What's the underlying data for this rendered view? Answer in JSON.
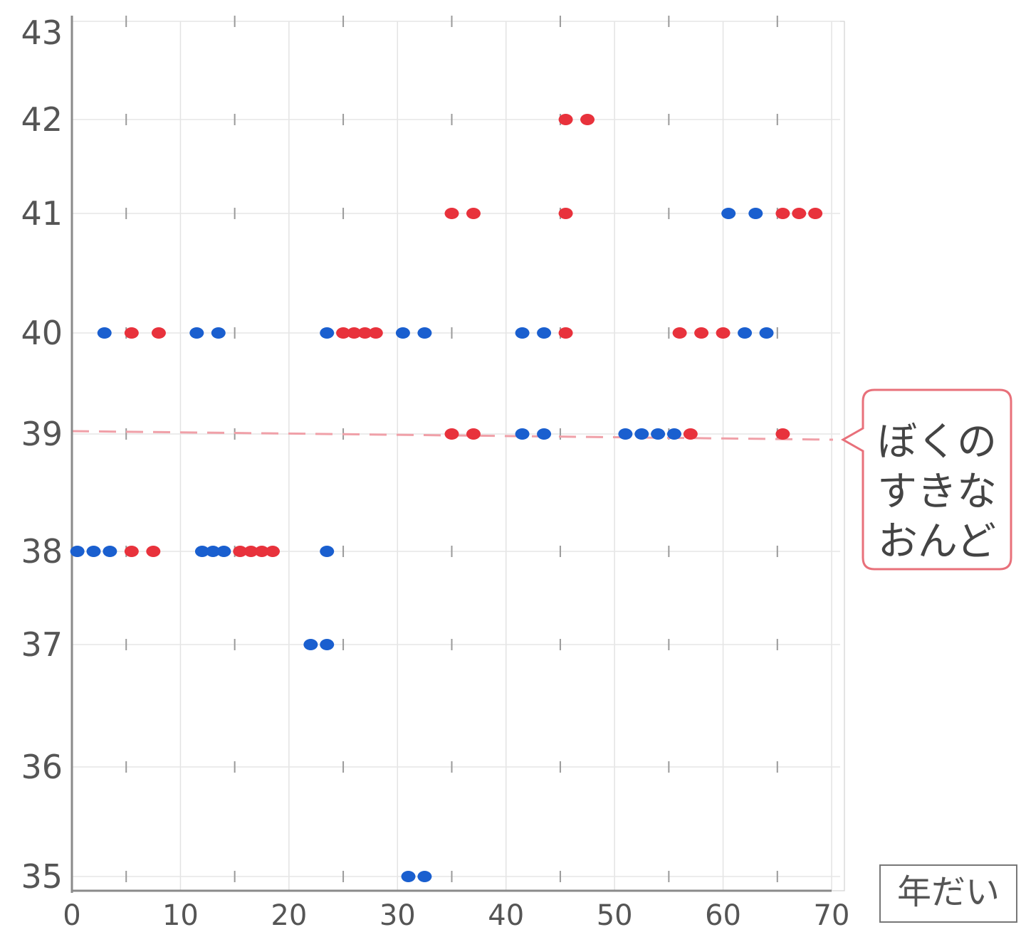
{
  "chart_data": {
    "type": "scatter",
    "title": "",
    "xlabel": "年だい",
    "ylabel": "",
    "xlim": [
      0,
      70
    ],
    "ylim": [
      35,
      43
    ],
    "x_ticks": [
      "0",
      "10",
      "20",
      "30",
      "40",
      "50",
      "60",
      "70"
    ],
    "y_ticks": [
      "35",
      "36",
      "37",
      "38",
      "39",
      "40",
      "41",
      "42",
      "43"
    ],
    "grid": true,
    "reference_line": {
      "y": 39,
      "label": "39",
      "color": "#f0a0a8"
    },
    "annotation": {
      "lines": [
        "ぼくの",
        "すきな",
        "おんど"
      ],
      "color": "#e8707a"
    },
    "series": [
      {
        "color": "#1a5fcf",
        "points": [
          [
            3,
            40
          ],
          [
            11.5,
            40
          ],
          [
            13.5,
            40
          ],
          [
            23.5,
            40
          ],
          [
            30.5,
            40
          ],
          [
            32.5,
            40
          ],
          [
            41.5,
            40
          ],
          [
            43.5,
            40
          ],
          [
            62,
            40
          ],
          [
            64,
            40
          ],
          [
            0.5,
            38
          ],
          [
            2,
            38
          ],
          [
            3.5,
            38
          ],
          [
            12,
            38
          ],
          [
            13,
            38
          ],
          [
            14,
            38
          ],
          [
            23.5,
            38
          ],
          [
            22,
            37
          ],
          [
            23.5,
            37
          ],
          [
            31,
            35
          ],
          [
            32.5,
            35
          ],
          [
            41.5,
            39
          ],
          [
            43.5,
            39
          ],
          [
            51,
            39
          ],
          [
            52.5,
            39
          ],
          [
            54,
            39
          ],
          [
            55.5,
            39
          ],
          [
            60.5,
            41
          ],
          [
            63,
            41
          ]
        ]
      },
      {
        "color": "#e8323c",
        "points": [
          [
            5.5,
            40
          ],
          [
            8,
            40
          ],
          [
            25,
            40
          ],
          [
            26,
            40
          ],
          [
            27,
            40
          ],
          [
            28,
            40
          ],
          [
            45.5,
            40
          ],
          [
            56,
            40
          ],
          [
            58,
            40
          ],
          [
            60,
            40
          ],
          [
            5.5,
            38
          ],
          [
            7.5,
            38
          ],
          [
            15.5,
            38
          ],
          [
            16.5,
            38
          ],
          [
            17.5,
            38
          ],
          [
            18.5,
            38
          ],
          [
            35,
            41
          ],
          [
            37,
            41
          ],
          [
            45.5,
            41
          ],
          [
            65.5,
            41
          ],
          [
            67,
            41
          ],
          [
            68.5,
            41
          ],
          [
            45.5,
            42
          ],
          [
            47.5,
            42
          ],
          [
            35,
            39
          ],
          [
            37,
            39
          ],
          [
            57,
            39
          ],
          [
            65.5,
            39
          ]
        ]
      }
    ]
  }
}
